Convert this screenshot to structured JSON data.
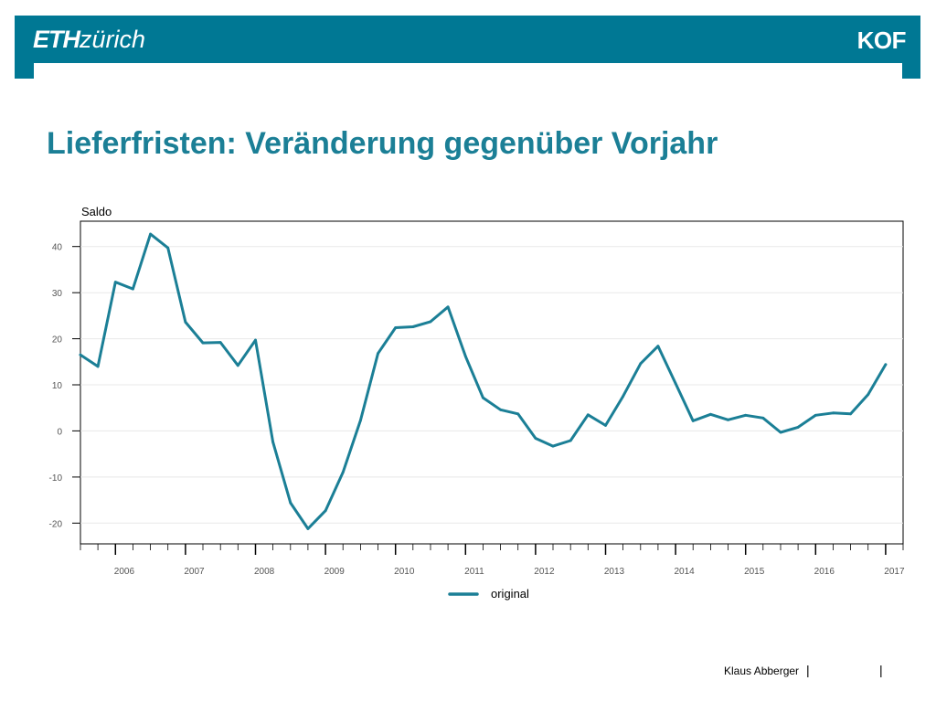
{
  "header": {
    "logo_eth": "ETH",
    "logo_zurich": "zürich",
    "logo_right": "KOF"
  },
  "title": "Lieferfristen: Veränderung gegenüber Vorjahr",
  "footer": {
    "author": "Klaus Abberger",
    "separator": "|"
  },
  "colors": {
    "brand": "#007894",
    "title": "#1b7f96",
    "series": "#1b7f96"
  },
  "chart_data": {
    "type": "line",
    "ylabel": "Saldo",
    "ylim": [
      -24.5,
      45.5
    ],
    "xlim": [
      2005.5,
      2017.25
    ],
    "yticks": [
      40,
      30,
      20,
      10,
      0,
      -10,
      -20
    ],
    "categories": [
      "2006",
      "2007",
      "2008",
      "2009",
      "2010",
      "2011",
      "2012",
      "2013",
      "2014",
      "2015",
      "2016",
      "2017"
    ],
    "legend": "bottom-center",
    "grid": true,
    "series": [
      {
        "name": "original",
        "x": [
          2005.5,
          2005.75,
          2006.0,
          2006.25,
          2006.5,
          2006.75,
          2007.0,
          2007.25,
          2007.5,
          2007.75,
          2008.0,
          2008.25,
          2008.5,
          2008.75,
          2009.0,
          2009.25,
          2009.5,
          2009.75,
          2010.0,
          2010.25,
          2010.5,
          2010.75,
          2011.0,
          2011.25,
          2011.5,
          2011.75,
          2012.0,
          2012.25,
          2012.5,
          2012.75,
          2013.0,
          2013.25,
          2013.5,
          2013.75,
          2014.0,
          2014.25,
          2014.5,
          2014.75,
          2015.0,
          2015.25,
          2015.5,
          2015.75,
          2016.0,
          2016.25,
          2016.5,
          2016.75,
          2017.0
        ],
        "values": [
          16.5,
          14.0,
          32.3,
          30.8,
          42.7,
          39.7,
          23.6,
          19.1,
          19.2,
          14.2,
          19.7,
          -2.4,
          -15.6,
          -21.2,
          -17.3,
          -9.0,
          2.3,
          16.8,
          22.4,
          22.6,
          23.7,
          26.9,
          16.2,
          7.2,
          4.6,
          3.7,
          -1.6,
          -3.3,
          -2.1,
          3.5,
          1.2,
          7.5,
          14.6,
          18.4,
          10.3,
          2.2,
          3.6,
          2.4,
          3.4,
          2.8,
          -0.3,
          0.8,
          3.4,
          3.9,
          3.7,
          7.9,
          14.4
        ]
      }
    ]
  }
}
